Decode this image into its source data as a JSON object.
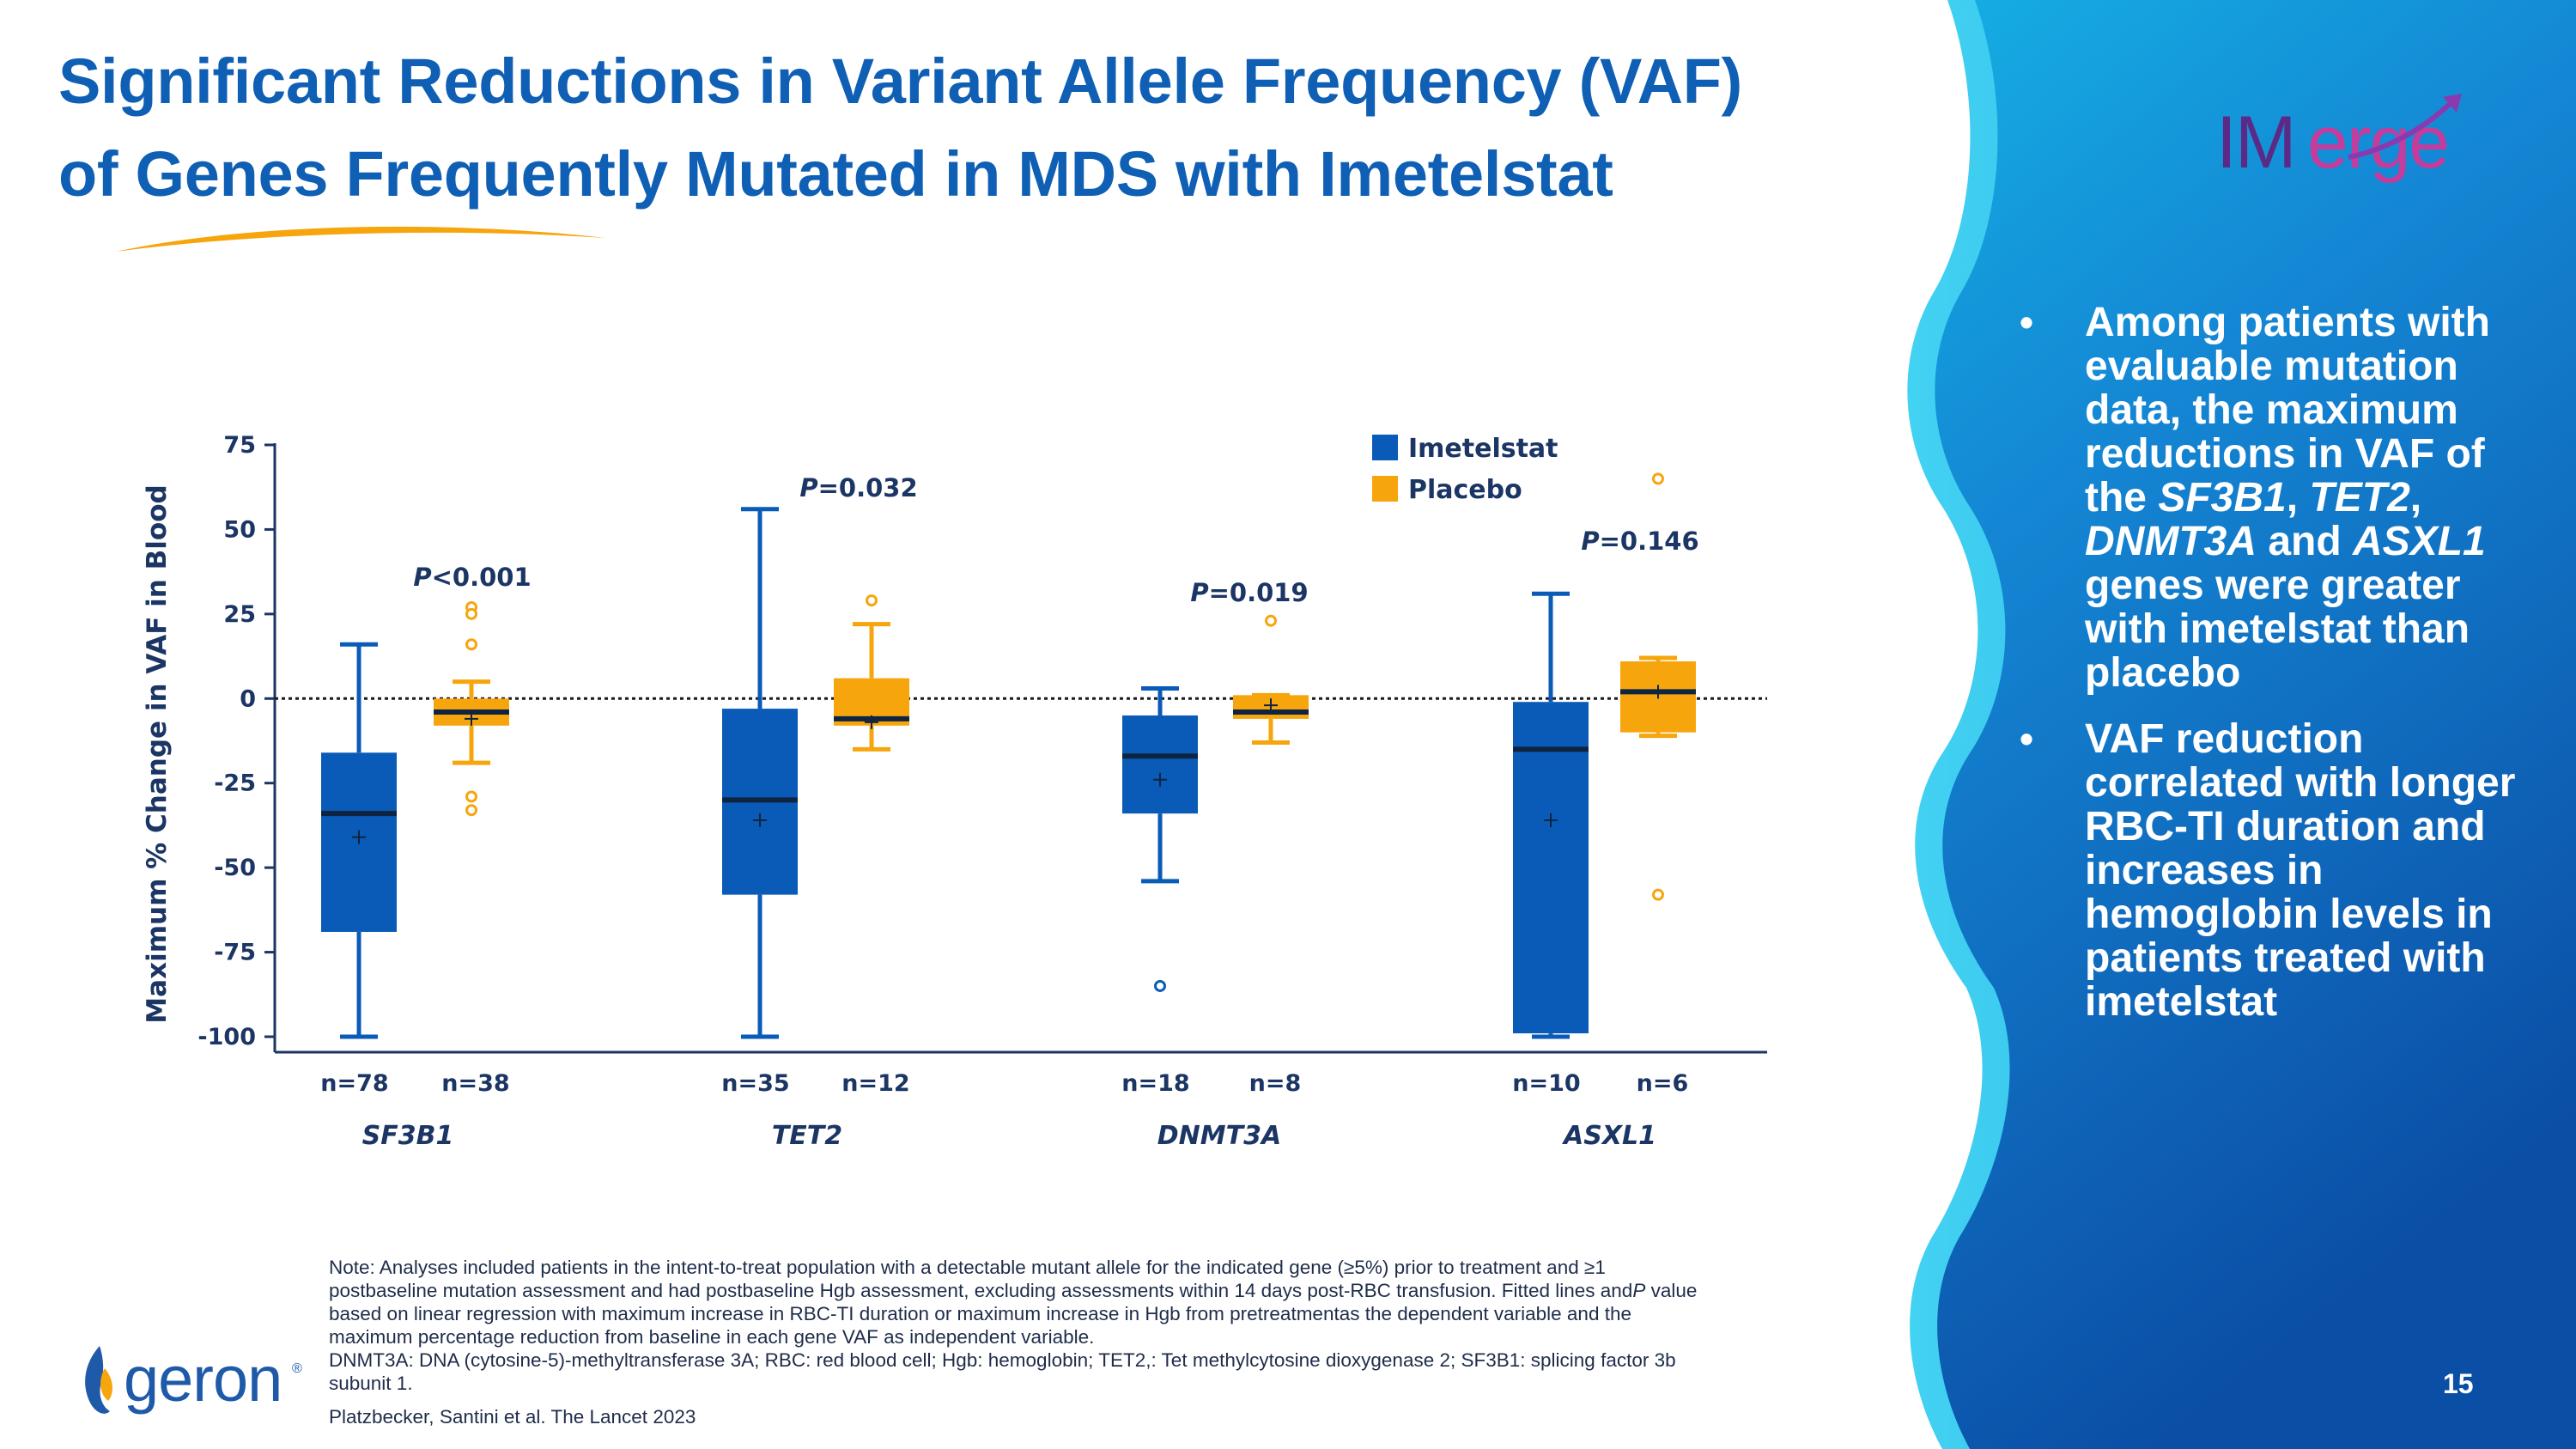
{
  "title": {
    "line1": "Significant Reductions in Variant Allele Frequency (VAF)",
    "line2": "of Genes Frequently Mutated in MDS with Imetelstat"
  },
  "logo": {
    "imerge_part1": "IM",
    "imerge_part2": "erge"
  },
  "bullets": {
    "b1_pre": "Among patients with evaluable mutation data, the maximum reductions in VAF of the ",
    "b1_gene1": "SF3B1",
    "b1_sep1": ", ",
    "b1_gene2": "TET2",
    "b1_sep2": ", ",
    "b1_gene3": "DNMT3A",
    "b1_and": " and ",
    "b1_gene4": "ASXL1",
    "b1_post": " genes were greater with imetelstat than placebo",
    "b2": "VAF reduction correlated with longer RBC-TI duration and increases in hemoglobin levels in patients treated with imetelstat",
    "bullet_char": "•"
  },
  "page_number": "15",
  "note": {
    "line1": "Note: Analyses included patients in the intent-to-treat population with a detectable mutant allele for the indicated gene (≥5%) prior to treatment and ≥1",
    "line2_pre": "postbaseline mutation assessment and had postbaseline Hgb assessment, excluding assessments within 14 days post-RBC transfusion. Fitted lines and",
    "line2_p": "P",
    "line2_post": " value",
    "line3": "based on linear regression with maximum increase in RBC-TI duration or maximum increase in Hgb from pretreatmentas the dependent variable and the",
    "line4": "maximum percentage reduction from baseline in each gene VAF as independent variable.",
    "line5": "DNMT3A: DNA (cytosine-5)-methyltransferase 3A; RBC: red blood cell; Hgb: hemoglobin; TET2,: Tet methylcytosine dioxygenase 2; SF3B1: splicing factor 3b",
    "line6": "subunit 1."
  },
  "citation": "Platzbecker, Santini et al. The Lancet 2023",
  "company_logo": "geron",
  "company_logo_mark": "®",
  "colors": {
    "title": "#0f5fb5",
    "imetelstat": "#0a5bb8",
    "placebo": "#f7a50d",
    "axis_text": "#1b3564",
    "panel_dark": "#0c4fa6",
    "panel_light": "#18b8ea"
  },
  "chart_data": {
    "type": "boxplot",
    "ylabel": "Maximum % Change in VAF in Blood",
    "ylim": [
      -100,
      75
    ],
    "yticks": [
      75,
      50,
      25,
      0,
      -25,
      -50,
      -75,
      -100
    ],
    "ytick_labels": [
      "75",
      "50",
      "25",
      "0",
      "-25",
      "-50",
      "-75",
      "-100"
    ],
    "reference_line": 0,
    "legend": [
      {
        "name": "Imetelstat",
        "color": "#0a5bb8"
      },
      {
        "name": "Placebo",
        "color": "#f7a50d"
      }
    ],
    "groups": [
      {
        "gene": "SF3B1",
        "p_italic": "P",
        "p_rest": "<0.001",
        "imetelstat": {
          "n": "n=78",
          "whisker_low": -100,
          "q1": -69,
          "median": -34,
          "mean": -41,
          "q3": -16,
          "whisker_high": 16,
          "outliers": []
        },
        "placebo": {
          "n": "n=38",
          "whisker_low": -19,
          "q1": -8,
          "median": -4,
          "mean": -6,
          "q3": 0,
          "whisker_high": 5,
          "outliers": [
            27,
            25,
            16,
            -29,
            -33
          ]
        }
      },
      {
        "gene": "TET2",
        "p_italic": "P",
        "p_rest": "=0.032",
        "imetelstat": {
          "n": "n=35",
          "whisker_low": -100,
          "q1": -58,
          "median": -30,
          "mean": -36,
          "q3": -3,
          "whisker_high": 56,
          "outliers": []
        },
        "placebo": {
          "n": "n=12",
          "whisker_low": -15,
          "q1": -8,
          "median": -6,
          "mean": -7,
          "q3": 6,
          "whisker_high": 22,
          "outliers": [
            29
          ]
        }
      },
      {
        "gene": "DNMT3A",
        "p_italic": "P",
        "p_rest": "=0.019",
        "imetelstat": {
          "n": "n=18",
          "whisker_low": -54,
          "q1": -34,
          "median": -17,
          "mean": -24,
          "q3": -5,
          "whisker_high": 3,
          "outliers": [
            -85
          ]
        },
        "placebo": {
          "n": "n=8",
          "whisker_low": -13,
          "q1": -6,
          "median": -4,
          "mean": -2,
          "q3": 1,
          "whisker_high": 1,
          "outliers": [
            23
          ]
        }
      },
      {
        "gene": "ASXL1",
        "p_italic": "P",
        "p_rest": "=0.146",
        "imetelstat": {
          "n": "n=10",
          "whisker_low": -100,
          "q1": -99,
          "median": -15,
          "mean": -36,
          "q3": -1,
          "whisker_high": 31,
          "outliers": []
        },
        "placebo": {
          "n": "n=6",
          "whisker_low": -11,
          "q1": -10,
          "median": 2,
          "mean": 2,
          "q3": 11,
          "whisker_high": 12,
          "outliers": [
            65,
            -58
          ]
        }
      }
    ]
  }
}
